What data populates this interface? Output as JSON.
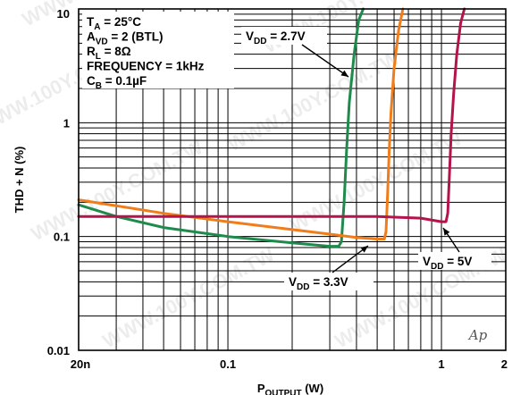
{
  "chart_data": {
    "type": "line",
    "xscale": "log",
    "yscale": "log",
    "xlim": [
      0.02,
      2
    ],
    "ylim": [
      0.01,
      10
    ],
    "xlabel": {
      "main": "P",
      "sub": "OUTPUT",
      "unit": " (W)"
    },
    "ylabel": "THD + N (%)",
    "x_tick_labels": [
      {
        "value": 0.02,
        "label": "20n"
      },
      {
        "value": 0.1,
        "label": "0.1"
      },
      {
        "value": 1,
        "label": "1"
      },
      {
        "value": 2,
        "label": "2"
      }
    ],
    "y_tick_labels": [
      {
        "value": 0.01,
        "label": "0.01"
      },
      {
        "value": 0.1,
        "label": "0.1"
      },
      {
        "value": 1,
        "label": "1"
      },
      {
        "value": 10,
        "label": "10"
      }
    ],
    "grid": true,
    "conditions": [
      {
        "main": "T",
        "sub": "A",
        "rest": " = 25°C"
      },
      {
        "main": "A",
        "sub": "VD",
        "rest": " = 2 (BTL)"
      },
      {
        "main": "R",
        "sub": "L",
        "rest": " = 8Ω"
      },
      {
        "main": "FREQUENCY = 1kHz",
        "sub": "",
        "rest": ""
      },
      {
        "main": "C",
        "sub": "B",
        "rest": " = 0.1µF"
      }
    ],
    "series": [
      {
        "label": {
          "main": "V",
          "sub": "DD",
          "rest": " = 2.7V"
        },
        "color": "#1e8a4c",
        "points": [
          [
            0.02,
            0.19
          ],
          [
            0.03,
            0.15
          ],
          [
            0.05,
            0.12
          ],
          [
            0.1,
            0.1
          ],
          [
            0.2,
            0.088
          ],
          [
            0.3,
            0.082
          ],
          [
            0.33,
            0.082
          ],
          [
            0.34,
            0.09
          ],
          [
            0.35,
            0.2
          ],
          [
            0.36,
            0.6
          ],
          [
            0.37,
            1.5
          ],
          [
            0.39,
            4
          ],
          [
            0.41,
            8
          ],
          [
            0.43,
            10
          ]
        ]
      },
      {
        "label": {
          "main": "V",
          "sub": "DD",
          "rest": " = 3.3V"
        },
        "color": "#f07d1a",
        "points": [
          [
            0.02,
            0.21
          ],
          [
            0.05,
            0.16
          ],
          [
            0.1,
            0.135
          ],
          [
            0.2,
            0.115
          ],
          [
            0.3,
            0.105
          ],
          [
            0.4,
            0.098
          ],
          [
            0.5,
            0.095
          ],
          [
            0.54,
            0.095
          ],
          [
            0.55,
            0.11
          ],
          [
            0.56,
            0.25
          ],
          [
            0.57,
            0.6
          ],
          [
            0.58,
            1.2
          ],
          [
            0.6,
            3
          ],
          [
            0.63,
            6.5
          ],
          [
            0.66,
            10
          ]
        ]
      },
      {
        "label": {
          "main": "V",
          "sub": "DD",
          "rest": " = 5V"
        },
        "color": "#b5134c",
        "points": [
          [
            0.02,
            0.15
          ],
          [
            0.1,
            0.15
          ],
          [
            0.3,
            0.15
          ],
          [
            0.5,
            0.15
          ],
          [
            0.8,
            0.145
          ],
          [
            1,
            0.135
          ],
          [
            1.05,
            0.135
          ],
          [
            1.07,
            0.16
          ],
          [
            1.09,
            0.35
          ],
          [
            1.11,
            0.8
          ],
          [
            1.14,
            1.8
          ],
          [
            1.18,
            4
          ],
          [
            1.23,
            7.5
          ],
          [
            1.28,
            10
          ]
        ]
      }
    ],
    "watermark": "WWW.100Y.COM.TW",
    "logo": "Ap"
  }
}
